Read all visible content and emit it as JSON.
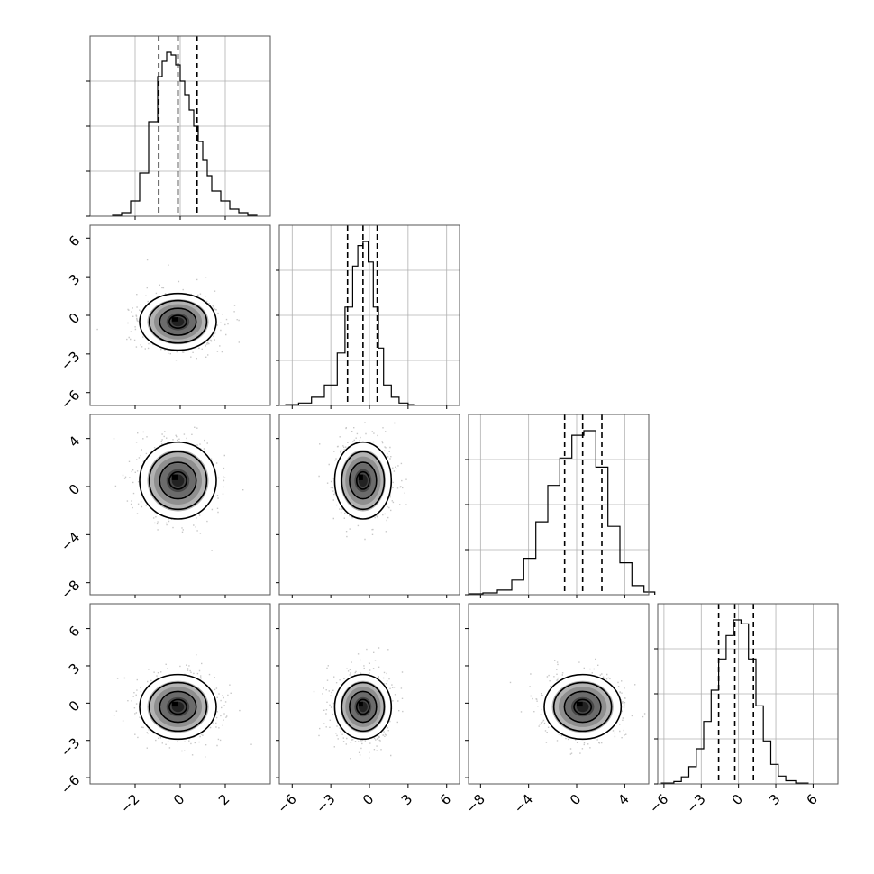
{
  "chart_data": {
    "type": "corner",
    "parameters": 4,
    "axis_ranges": [
      [
        -4,
        4
      ],
      [
        -7,
        7
      ],
      [
        -9,
        6
      ],
      [
        -6.5,
        8
      ]
    ],
    "x_ticks": [
      [
        -2,
        0,
        2
      ],
      [
        -6,
        -3,
        0,
        3,
        6
      ],
      [
        -8,
        -4,
        0,
        4
      ],
      [
        -6,
        -3,
        0,
        3,
        6
      ]
    ],
    "y_ticks": [
      [],
      [
        -6,
        -3,
        0,
        3,
        6
      ],
      [
        -8,
        -4,
        0,
        4
      ],
      [
        -6,
        -3,
        0,
        3,
        6
      ]
    ],
    "x_tick_labels": [
      [
        "−2",
        "0",
        "2"
      ],
      [
        "−6",
        "−3",
        "0",
        "3",
        "6"
      ],
      [
        "−8",
        "−4",
        "0",
        "4"
      ],
      [
        "−6",
        "−3",
        "0",
        "3",
        "6"
      ]
    ],
    "y_tick_labels": [
      [],
      [
        "−6",
        "−3",
        "0",
        "3",
        "6"
      ],
      [
        "−8",
        "−4",
        "0",
        "4"
      ],
      [
        "−6",
        "−3",
        "0",
        "3",
        "6"
      ]
    ],
    "means": [
      -0.1,
      -0.5,
      0.5,
      -0.3
    ],
    "sigmas": [
      0.85,
      1.1,
      1.6,
      1.3
    ],
    "quantiles": [
      [
        -0.95,
        -0.1,
        0.75
      ],
      [
        -1.7,
        -0.5,
        0.6
      ],
      [
        -1.0,
        0.5,
        2.1
      ],
      [
        -1.6,
        -0.3,
        1.2
      ]
    ],
    "histograms": [
      {
        "edges": [
          -3.0,
          -2.6,
          -2.2,
          -1.8,
          -1.4,
          -1.0,
          -0.8,
          -0.6,
          -0.4,
          -0.2,
          0.0,
          0.2,
          0.4,
          0.6,
          0.8,
          1.0,
          1.2,
          1.4,
          1.8,
          2.2,
          2.6,
          3.0,
          3.4
        ],
        "counts": [
          1,
          4,
          17,
          48,
          105,
          155,
          172,
          182,
          179,
          168,
          150,
          135,
          118,
          100,
          83,
          62,
          45,
          28,
          17,
          8,
          4,
          1
        ]
      },
      {
        "edges": [
          -6.5,
          -5.5,
          -4.5,
          -3.5,
          -2.5,
          -1.9,
          -1.3,
          -0.9,
          -0.5,
          -0.1,
          0.3,
          0.7,
          1.1,
          1.7,
          2.3,
          3.0,
          3.5
        ],
        "counts": [
          1,
          3,
          10,
          25,
          64,
          120,
          170,
          195,
          200,
          175,
          120,
          70,
          25,
          10,
          3,
          1
        ]
      },
      {
        "edges": [
          -9.0,
          -7.8,
          -6.6,
          -5.4,
          -4.4,
          -3.4,
          -2.4,
          -1.4,
          -0.4,
          0.6,
          1.6,
          2.6,
          3.6,
          4.6,
          5.6,
          6.5
        ],
        "counts": [
          1,
          2,
          5,
          16,
          40,
          80,
          120,
          150,
          175,
          180,
          140,
          75,
          35,
          10,
          3
        ]
      },
      {
        "edges": [
          -6.2,
          -5.2,
          -4.6,
          -4.0,
          -3.4,
          -2.8,
          -2.2,
          -1.6,
          -1.0,
          -0.4,
          0.2,
          0.8,
          1.4,
          2.0,
          2.6,
          3.2,
          3.8,
          4.6,
          5.6
        ],
        "counts": [
          1,
          3,
          9,
          22,
          45,
          80,
          120,
          160,
          190,
          210,
          205,
          160,
          100,
          55,
          25,
          10,
          4,
          1
        ]
      }
    ],
    "grid": true,
    "show_titles": false
  }
}
